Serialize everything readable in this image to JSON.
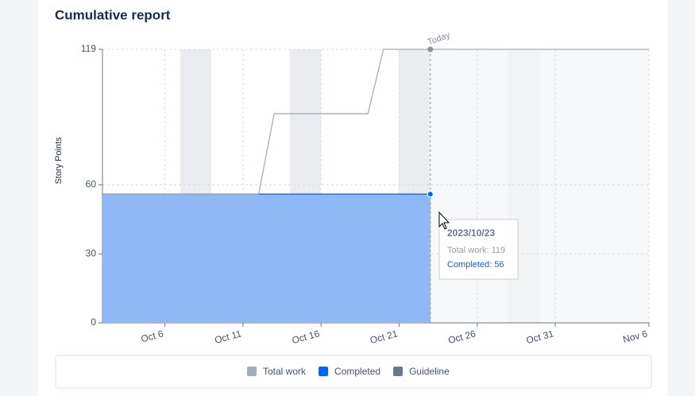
{
  "chart_data": {
    "type": "line",
    "title": "Cumulative report",
    "ylabel": "Story Points",
    "xlim": [
      "2023-10-02",
      "2023-11-06"
    ],
    "xticks": [
      {
        "value": "2023-10-06",
        "label": "Oct 6"
      },
      {
        "value": "2023-10-11",
        "label": "Oct 11"
      },
      {
        "value": "2023-10-16",
        "label": "Oct 16"
      },
      {
        "value": "2023-10-21",
        "label": "Oct 21"
      },
      {
        "value": "2023-10-26",
        "label": "Oct 26"
      },
      {
        "value": "2023-10-31",
        "label": "Oct 31"
      },
      {
        "value": "2023-11-06",
        "label": "Nov 6"
      }
    ],
    "ylim": [
      0,
      119
    ],
    "yticks": [
      0,
      30,
      60,
      119
    ],
    "grid": true,
    "today": {
      "x": "2023-10-23",
      "label": "Today"
    },
    "series": [
      {
        "name": "Total work",
        "color": "#a5adba",
        "x": [
          "2023-10-02",
          "2023-10-12",
          "2023-10-13",
          "2023-10-19",
          "2023-10-20",
          "2023-11-06"
        ],
        "values": [
          56,
          56,
          91,
          91,
          119,
          119
        ]
      },
      {
        "name": "Completed",
        "color": "#0065ff",
        "x": [
          "2023-10-02",
          "2023-10-23"
        ],
        "values": [
          56,
          56
        ]
      },
      {
        "name": "Guideline",
        "color": "#6b778c",
        "x": [],
        "values": []
      }
    ],
    "tooltip": {
      "title": "2023/10/23",
      "lines": [
        "Total work: 119",
        "Completed: 56"
      ]
    }
  }
}
